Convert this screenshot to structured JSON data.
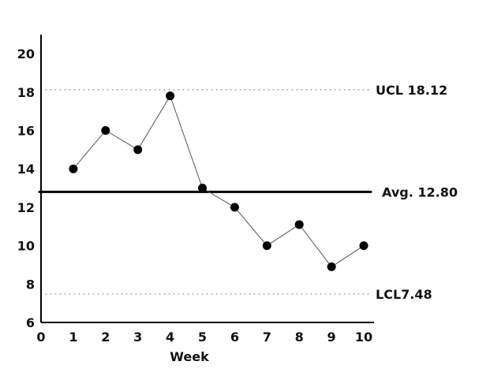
{
  "chart_data": {
    "type": "line",
    "title": "",
    "xlabel": "Week",
    "ylabel": "",
    "x": [
      1,
      2,
      3,
      4,
      5,
      6,
      7,
      8,
      9,
      10
    ],
    "xlim": [
      0,
      10
    ],
    "ylim": [
      6,
      21
    ],
    "x_ticks": [
      "0",
      "1",
      "2",
      "3",
      "4",
      "5",
      "6",
      "7",
      "8",
      "9",
      "10"
    ],
    "y_ticks": [
      "6",
      "8",
      "10",
      "12",
      "14",
      "16",
      "18",
      "20"
    ],
    "series": [
      {
        "values": [
          14.0,
          16.0,
          15.0,
          17.8,
          13.0,
          12.0,
          10.0,
          11.1,
          8.9,
          10.0
        ]
      }
    ],
    "reference_lines": [
      {
        "label": "UCL 18.12",
        "value": 18.12,
        "style": "dotted"
      },
      {
        "label": "Avg. 12.80",
        "value": 12.8,
        "style": "solid"
      },
      {
        "label": "LCL7.48",
        "value": 7.48,
        "style": "dotted"
      }
    ],
    "grid": false,
    "colors": {
      "line": "#555555",
      "marker": "#000000",
      "axis": "#000000",
      "reference": "#777777"
    }
  }
}
